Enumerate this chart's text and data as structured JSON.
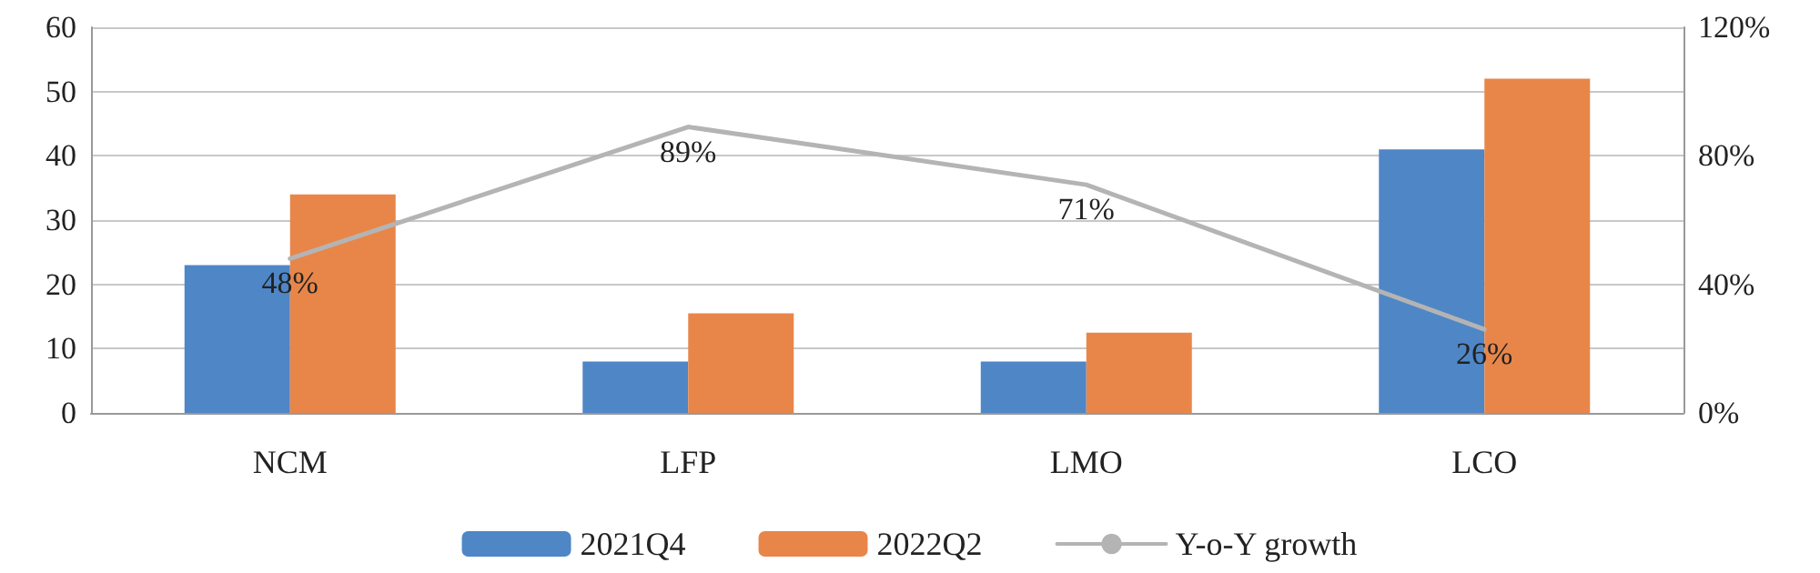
{
  "chart_data": {
    "type": "bar",
    "categories": [
      "NCM",
      "LFP",
      "LMO",
      "LCO"
    ],
    "series": [
      {
        "name": "2021Q4",
        "color": "#4f86c6",
        "values": [
          23,
          8,
          8,
          41
        ]
      },
      {
        "name": "2022Q2",
        "color": "#e8864a",
        "values": [
          34,
          15.5,
          12.5,
          52
        ]
      },
      {
        "name": "Y-o-Y growth",
        "type": "line",
        "axis": "y2",
        "color": "#b4b4b4",
        "values": [
          48,
          89,
          71,
          26
        ],
        "value_labels": [
          "48%",
          "89%",
          "71%",
          "26%"
        ],
        "marker": "none"
      }
    ],
    "ylim": [
      0,
      60
    ],
    "yticks": [
      0,
      10,
      20,
      30,
      40,
      50,
      60
    ],
    "y2lim": [
      0,
      120
    ],
    "y2ticks": [
      {
        "value": 0,
        "label": "0%"
      },
      {
        "value": 40,
        "label": "40%"
      },
      {
        "value": 80,
        "label": "80%"
      },
      {
        "value": 120,
        "label": "120%"
      }
    ],
    "grid": "y",
    "legend": "bottom"
  }
}
